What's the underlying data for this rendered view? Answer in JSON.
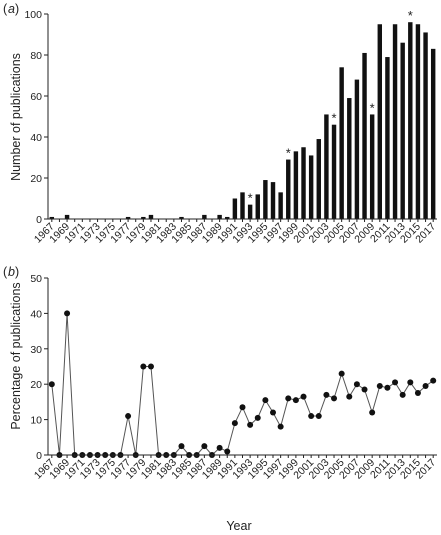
{
  "panel_labels": [
    "a",
    "b"
  ],
  "chart_data": [
    {
      "type": "bar",
      "panel": "a",
      "title": "",
      "xlabel": "",
      "ylabel": "Number of publications",
      "ylim": [
        0,
        100
      ],
      "yticks": [
        0,
        20,
        40,
        60,
        80,
        100
      ],
      "grid": false,
      "x": [
        1967,
        1968,
        1969,
        1970,
        1971,
        1972,
        1973,
        1974,
        1975,
        1976,
        1977,
        1978,
        1979,
        1980,
        1981,
        1982,
        1983,
        1984,
        1985,
        1986,
        1987,
        1988,
        1989,
        1990,
        1991,
        1992,
        1993,
        1994,
        1995,
        1996,
        1997,
        1998,
        1999,
        2000,
        2001,
        2002,
        2003,
        2004,
        2005,
        2006,
        2007,
        2008,
        2009,
        2010,
        2011,
        2012,
        2013,
        2014,
        2015,
        2016,
        2017
      ],
      "values": [
        1,
        0,
        2,
        0,
        0,
        0,
        0,
        0,
        0,
        0,
        1,
        0,
        1,
        2,
        0,
        0,
        0,
        1,
        0,
        0,
        2,
        0,
        2,
        1,
        10,
        13,
        7,
        12,
        19,
        18,
        13,
        29,
        33,
        35,
        31,
        39,
        51,
        46,
        74,
        59,
        68,
        81,
        51,
        95,
        79,
        95,
        86,
        96,
        95,
        91,
        83
      ],
      "xtick_labels": [
        "1967",
        "1969",
        "1971",
        "1973",
        "1975",
        "1977",
        "1979",
        "1981",
        "1983",
        "1985",
        "1987",
        "1989",
        "1991",
        "1993",
        "1995",
        "1997",
        "1999",
        "2001",
        "2003",
        "2005",
        "2007",
        "2009",
        "2011",
        "2013",
        "2015",
        "2017"
      ],
      "annotations": [
        {
          "x": 1993,
          "text": "*"
        },
        {
          "x": 1998,
          "text": "*"
        },
        {
          "x": 2004,
          "text": "*"
        },
        {
          "x": 2009,
          "text": "*"
        },
        {
          "x": 2014,
          "text": "*"
        }
      ]
    },
    {
      "type": "line",
      "panel": "b",
      "title": "",
      "xlabel": "Year",
      "ylabel": "Percentage of publications",
      "ylim": [
        0,
        50
      ],
      "yticks": [
        0,
        10,
        20,
        30,
        40,
        50
      ],
      "grid": false,
      "x": [
        1967,
        1968,
        1969,
        1970,
        1971,
        1972,
        1973,
        1974,
        1975,
        1976,
        1977,
        1978,
        1979,
        1980,
        1981,
        1982,
        1983,
        1984,
        1985,
        1986,
        1987,
        1988,
        1989,
        1990,
        1991,
        1992,
        1993,
        1994,
        1995,
        1996,
        1997,
        1998,
        1999,
        2000,
        2001,
        2002,
        2003,
        2004,
        2005,
        2006,
        2007,
        2008,
        2009,
        2010,
        2011,
        2012,
        2013,
        2014,
        2015,
        2016,
        2017
      ],
      "values": [
        20,
        0,
        40,
        0,
        0,
        0,
        0,
        0,
        0,
        0,
        11,
        0,
        25,
        25,
        0,
        0,
        0,
        2.5,
        0,
        0,
        2.5,
        0,
        2,
        1,
        9,
        13.5,
        8.5,
        10.5,
        15.5,
        12,
        8,
        16,
        15.5,
        16.5,
        11,
        11,
        17,
        16,
        23,
        16.5,
        20,
        18.5,
        12,
        19.5,
        19,
        20.5,
        17,
        20.5,
        17.5,
        19.5,
        21
      ],
      "xtick_labels": [
        "1967",
        "1969",
        "1971",
        "1973",
        "1975",
        "1977",
        "1979",
        "1981",
        "1983",
        "1985",
        "1987",
        "1989",
        "1991",
        "1993",
        "1995",
        "1997",
        "1999",
        "2001",
        "2003",
        "2005",
        "2007",
        "2009",
        "2011",
        "2013",
        "2015",
        "2017"
      ]
    }
  ]
}
